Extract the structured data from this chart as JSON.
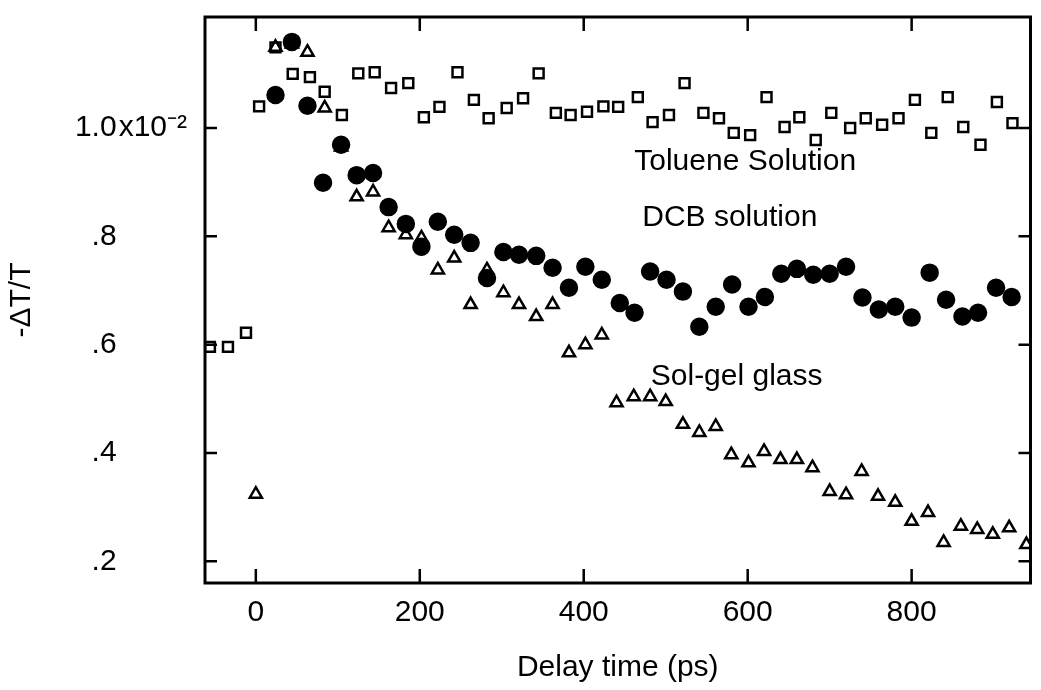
{
  "chart_data": {
    "type": "scatter",
    "xlabel": "Delay time (ps)",
    "ylabel": "-ΔT/T",
    "xlim": [
      -62,
      945
    ],
    "ylim": [
      0.16,
      1.205
    ],
    "xticks": [
      0,
      200,
      400,
      600,
      800
    ],
    "yticks": [
      {
        "value": 1.0,
        "label": "1.0"
      },
      {
        "value": 0.8,
        "label": ".8"
      },
      {
        "value": 0.6,
        "label": ".6"
      },
      {
        "value": 0.4,
        "label": ".4"
      },
      {
        "value": 0.2,
        "label": ".2"
      }
    ],
    "annotations": [
      "x10⁻²"
    ],
    "grid": false,
    "legend": false,
    "series": [
      {
        "name": "Toluene Solution",
        "color": "#000000",
        "marker": "square",
        "x": [
          -56,
          -34,
          -12,
          4,
          24,
          45,
          66,
          84,
          105,
          125,
          145,
          165,
          186,
          205,
          224,
          246,
          266,
          284,
          306,
          326,
          345,
          366,
          384,
          404,
          424,
          442,
          466,
          484,
          504,
          523,
          546,
          565,
          583,
          603,
          623,
          645,
          663,
          683,
          702,
          725,
          744,
          764,
          784,
          804,
          824,
          844,
          863,
          884,
          904,
          923
        ],
        "values": [
          0.596,
          0.596,
          0.622,
          1.04,
          1.149,
          1.1,
          1.094,
          1.067,
          1.024,
          1.101,
          1.103,
          1.074,
          1.083,
          1.02,
          1.039,
          1.103,
          1.052,
          1.018,
          1.037,
          1.055,
          1.101,
          1.028,
          1.024,
          1.03,
          1.04,
          1.039,
          1.057,
          1.011,
          1.024,
          1.083,
          1.028,
          1.018,
          0.991,
          0.987,
          1.057,
          1.002,
          1.02,
          0.978,
          1.028,
          1.0,
          1.018,
          1.006,
          1.018,
          1.052,
          0.991,
          1.057,
          1.002,
          0.969,
          1.048,
          1.009
        ]
      },
      {
        "name": "DCB solution",
        "color": "#000000",
        "marker": "circle",
        "x": [
          24,
          44,
          63,
          82,
          104,
          123,
          143,
          162,
          183,
          202,
          222,
          242,
          262,
          282,
          302,
          321,
          342,
          362,
          382,
          402,
          422,
          444,
          462,
          481,
          501,
          521,
          541,
          561,
          581,
          601,
          621,
          641,
          660,
          680,
          700,
          720,
          740,
          760,
          780,
          800,
          822,
          842,
          862,
          881,
          903,
          922
        ],
        "values": [
          1.061,
          1.159,
          1.041,
          0.899,
          0.969,
          0.913,
          0.917,
          0.854,
          0.823,
          0.781,
          0.827,
          0.803,
          0.788,
          0.723,
          0.771,
          0.766,
          0.764,
          0.742,
          0.705,
          0.744,
          0.72,
          0.677,
          0.659,
          0.735,
          0.72,
          0.698,
          0.633,
          0.67,
          0.711,
          0.67,
          0.688,
          0.731,
          0.74,
          0.729,
          0.731,
          0.744,
          0.687,
          0.665,
          0.67,
          0.65,
          0.733,
          0.683,
          0.652,
          0.659,
          0.705,
          0.688
        ]
      },
      {
        "name": "Sol-gel glass",
        "color": "#000000",
        "marker": "triangle",
        "x": [
          0,
          24,
          44,
          63,
          84,
          104,
          123,
          143,
          162,
          183,
          202,
          222,
          242,
          262,
          282,
          302,
          321,
          342,
          362,
          382,
          402,
          422,
          440,
          461,
          481,
          500,
          521,
          541,
          561,
          580,
          601,
          620,
          640,
          660,
          679,
          700,
          720,
          739,
          759,
          780,
          800,
          820,
          839,
          860,
          880,
          899,
          919,
          940
        ],
        "values": [
          0.324,
          1.149,
          1.155,
          1.14,
          1.037,
          0.965,
          0.873,
          0.882,
          0.816,
          0.803,
          0.797,
          0.738,
          0.76,
          0.674,
          0.738,
          0.696,
          0.674,
          0.652,
          0.674,
          0.585,
          0.6,
          0.618,
          0.493,
          0.504,
          0.504,
          0.495,
          0.453,
          0.438,
          0.449,
          0.397,
          0.382,
          0.403,
          0.388,
          0.388,
          0.373,
          0.329,
          0.323,
          0.366,
          0.32,
          0.309,
          0.274,
          0.29,
          0.235,
          0.265,
          0.259,
          0.25,
          0.262,
          0.231
        ]
      }
    ]
  }
}
